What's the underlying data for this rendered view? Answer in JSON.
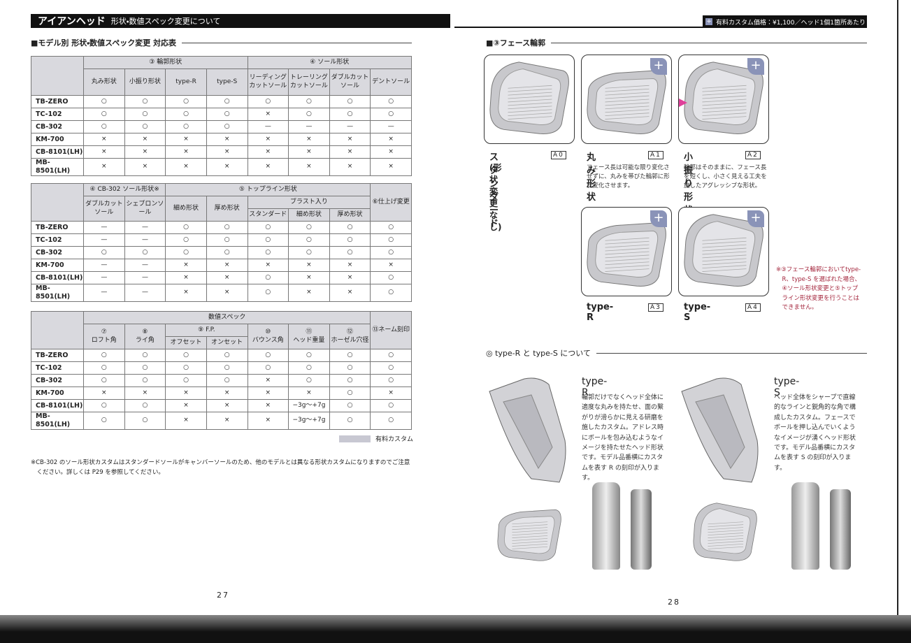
{
  "header": {
    "title": "アイアンヘッド",
    "subtitle": "形状・数値スペック変更について",
    "price_note": "有料カスタム価格：¥1,100／ヘッド1個1箇所あたり"
  },
  "left": {
    "section_title": "■モデル別 形状・数値スペック変更 対応表",
    "table1": {
      "groups": [
        "③ 輪郭形状",
        "④ ソール形状"
      ],
      "columns": [
        "丸み形状",
        "小振り形状",
        "type-R",
        "type-S",
        "リーディングカットソール",
        "トレーリングカットソール",
        "ダブルカットソール",
        "デントソール"
      ],
      "rows": [
        {
          "model": "TB-ZERO",
          "cells": [
            "○",
            "○",
            "○",
            "○",
            "○",
            "○",
            "○",
            "○"
          ]
        },
        {
          "model": "TC-102",
          "cells": [
            "○",
            "○",
            "○",
            "○",
            "×",
            "○",
            "○",
            "○"
          ]
        },
        {
          "model": "CB-302",
          "cells": [
            "○",
            "○",
            "○",
            "○",
            "—",
            "—",
            "—",
            "—"
          ]
        },
        {
          "model": "KM-700",
          "cells": [
            "×",
            "×",
            "×",
            "×",
            "×",
            "×",
            "×",
            "×"
          ]
        },
        {
          "model": "CB-8101(LH)",
          "cells": [
            "×",
            "×",
            "×",
            "×",
            "×",
            "×",
            "×",
            "×"
          ]
        },
        {
          "model": "MB-8501(LH)",
          "cells": [
            "×",
            "×",
            "×",
            "×",
            "×",
            "×",
            "×",
            "×"
          ]
        }
      ]
    },
    "table2": {
      "groups": [
        "④ CB-302 ソール形状※",
        "⑤ トップライン形状",
        "⑥仕上げ変更"
      ],
      "subgroups": [
        "ブラスト入り"
      ],
      "columns": [
        "ダブルカットソール",
        "シェブロンソール",
        "細め形状",
        "厚め形状",
        "スタンダード",
        "細め形状",
        "厚め形状"
      ],
      "rows": [
        {
          "model": "TB-ZERO",
          "cells": [
            "—",
            "—",
            "○",
            "○",
            "○",
            "○",
            "○",
            "○"
          ]
        },
        {
          "model": "TC-102",
          "cells": [
            "—",
            "—",
            "○",
            "○",
            "○",
            "○",
            "○",
            "○"
          ]
        },
        {
          "model": "CB-302",
          "cells": [
            "○",
            "○",
            "○",
            "○",
            "○",
            "○",
            "○",
            "○"
          ]
        },
        {
          "model": "KM-700",
          "cells": [
            "—",
            "—",
            "×",
            "×",
            "×",
            "×",
            "×",
            "×"
          ]
        },
        {
          "model": "CB-8101(LH)",
          "cells": [
            "—",
            "—",
            "×",
            "×",
            "○",
            "×",
            "×",
            "○"
          ]
        },
        {
          "model": "MB-8501(LH)",
          "cells": [
            "—",
            "—",
            "×",
            "×",
            "○",
            "×",
            "×",
            "○"
          ]
        }
      ]
    },
    "table3": {
      "groups": [
        "数値スペック",
        "⑬ネーム刻印"
      ],
      "subgroups": [
        "⑨ F.P."
      ],
      "columns": [
        {
          "num": "⑦",
          "name": "ロフト角"
        },
        {
          "num": "⑧",
          "name": "ライ角"
        },
        {
          "name": "オフセット"
        },
        {
          "name": "オンセット"
        },
        {
          "num": "⑩",
          "name": "バウンス角"
        },
        {
          "num": "⑪",
          "name": "ヘッド重量"
        },
        {
          "num": "⑫",
          "name": "ホーゼル穴径"
        }
      ],
      "rows": [
        {
          "model": "TB-ZERO",
          "cells": [
            "○",
            "○",
            "○",
            "○",
            "○",
            "○",
            "○",
            "○"
          ]
        },
        {
          "model": "TC-102",
          "cells": [
            "○",
            "○",
            "○",
            "○",
            "○",
            "○",
            "○",
            "○"
          ]
        },
        {
          "model": "CB-302",
          "cells": [
            "○",
            "○",
            "○",
            "○",
            "×",
            "○",
            "○",
            "○"
          ]
        },
        {
          "model": "KM-700",
          "cells": [
            "×",
            "×",
            "×",
            "×",
            "×",
            "×",
            "○",
            "×"
          ]
        },
        {
          "model": "CB-8101(LH)",
          "cells": [
            "○",
            "○",
            "×",
            "×",
            "×",
            "−3g〜+7g",
            "○",
            "○"
          ]
        },
        {
          "model": "MB-8501(LH)",
          "cells": [
            "○",
            "○",
            "×",
            "×",
            "×",
            "−3g〜+7g",
            "○",
            "○"
          ]
        }
      ]
    },
    "legend": "有料カスタム",
    "footnote": "※CB-302 のソール形状カスタムはスタンダードソールがキャンバーソールのため、他のモデルとは異なる形状カスタムになりますのでご注意ください。詳しくは P29 を参照してください。",
    "page_number": "27"
  },
  "right": {
    "section_title": "■③フェース輪郭",
    "items": [
      {
        "name": "スタンダード",
        "sub": "(形状変更なし)",
        "code": "A0"
      },
      {
        "name": "丸み形状",
        "code": "A1",
        "desc": "フェース長は可能な限り変化させずに、丸みを帯びた輪郭に形状変化させます。"
      },
      {
        "name": "小振り形状",
        "code": "A2",
        "desc": "輪郭はそのままに、フェース長を短くし、小さく見える工夫を施したアグレッシブな形状。"
      },
      {
        "name": "type-R",
        "code": "A3"
      },
      {
        "name": "type-S",
        "code": "A4"
      }
    ],
    "note": "※③フェース輪郭においてtype-R、type-S を選ばれた場合、④ソール形状変更と⑤トップライン形状変更を行うことはできません。",
    "about_title": "◎ type-R と type-S について",
    "types": [
      {
        "name": "type-R",
        "desc": "輪郭だけでなくヘッド全体に適度な丸みを持たせ、面の繋がりが滑らかに見える研磨を施したカスタム。アドレス時にボールを包み込むようなイメージを持たせたヘッド形状です。モデル品番横にカスタムを表す R の刻印が入ります。"
      },
      {
        "name": "type-S",
        "desc": "ヘッド全体をシャープで直線的なラインと鋭角的な角で構成したカスタム。フェースでボールを押し込んでいくようなイメージが湧くヘッド形状です。モデル品番横にカスタムを表す S の刻印が入ります。"
      }
    ],
    "page_number": "28"
  }
}
